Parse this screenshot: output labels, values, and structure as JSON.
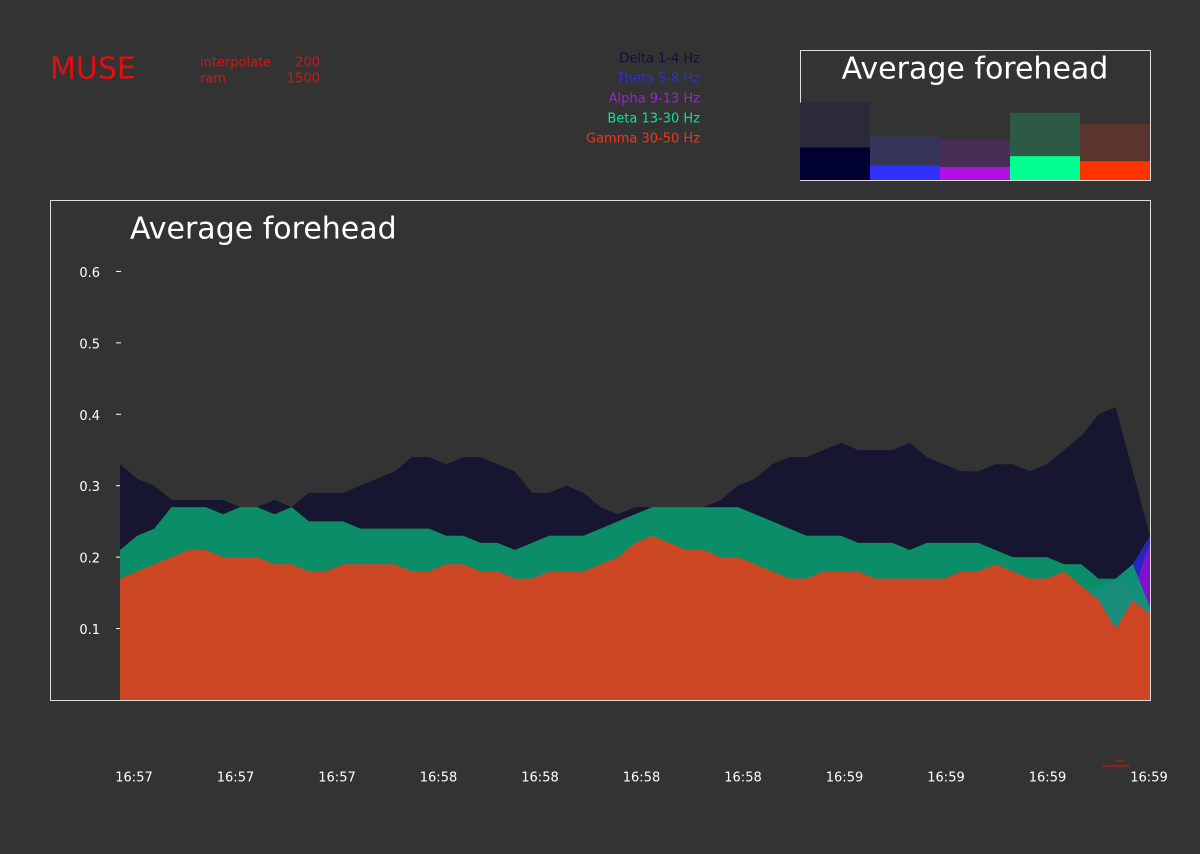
{
  "header": {
    "title": "MUSE",
    "settings": [
      {
        "label": "interpolate",
        "value": "200"
      },
      {
        "label": "ram",
        "value": "1500"
      }
    ]
  },
  "chart_data": [
    {
      "type": "bar",
      "title": "Average forehead",
      "ylim": [
        0,
        0.18
      ],
      "series": [
        {
          "colors": [
            "#2a2a3a",
            "#35355a",
            "#4a2d55",
            "#2e5a45",
            "#5a3530"
          ],
          "values": [
            0.107,
            0.06,
            0.056,
            0.093,
            0.078
          ]
        },
        {
          "colors": [
            "#000033",
            "#3030ff",
            "#b010e0",
            "#00ff90",
            "#ff3300"
          ],
          "values": [
            0.045,
            0.02,
            0.018,
            0.033,
            0.026
          ]
        }
      ]
    },
    {
      "type": "area",
      "title": "Average forehead",
      "ylim": [
        0,
        0.7
      ],
      "yticks": [
        0.1,
        0.2,
        0.3,
        0.4,
        0.5,
        0.6
      ],
      "categories": [
        "16:57",
        null,
        null,
        null,
        null,
        null,
        "16:57",
        null,
        null,
        null,
        null,
        null,
        "16:57",
        null,
        null,
        null,
        null,
        null,
        "16:58",
        null,
        null,
        null,
        null,
        null,
        "16:58",
        null,
        null,
        null,
        null,
        null,
        "16:58",
        null,
        null,
        null,
        null,
        null,
        "16:58",
        null,
        null,
        null,
        null,
        null,
        "16:59",
        null,
        null,
        null,
        null,
        null,
        "16:59",
        null,
        null,
        null,
        null,
        null,
        "16:59",
        null,
        null,
        null,
        null,
        null,
        "16:59"
      ],
      "series": [
        {
          "name": "Delta 1-4 Hz",
          "color": "#161630",
          "label_color": "#101040",
          "values": [
            0.33,
            0.31,
            0.3,
            0.28,
            0.28,
            0.28,
            0.28,
            0.27,
            0.27,
            0.28,
            0.27,
            0.29,
            0.29,
            0.29,
            0.3,
            0.31,
            0.32,
            0.34,
            0.34,
            0.33,
            0.34,
            0.34,
            0.33,
            0.32,
            0.29,
            0.29,
            0.3,
            0.29,
            0.27,
            0.26,
            0.27,
            0.27,
            0.27,
            0.27,
            0.27,
            0.28,
            0.3,
            0.31,
            0.33,
            0.34,
            0.34,
            0.35,
            0.36,
            0.35,
            0.35,
            0.35,
            0.36,
            0.34,
            0.33,
            0.32,
            0.32,
            0.33,
            0.33,
            0.32,
            0.33,
            0.35,
            0.37,
            0.4,
            0.41,
            0.32,
            0.23
          ]
        },
        {
          "name": "Theta 5-8 Hz",
          "color": "#2a2ad0",
          "label_color": "#3030d0",
          "values": [
            0.15,
            0.14,
            0.14,
            0.13,
            0.13,
            0.13,
            0.14,
            0.14,
            0.14,
            0.14,
            0.14,
            0.14,
            0.14,
            0.14,
            0.13,
            0.13,
            0.13,
            0.14,
            0.14,
            0.15,
            0.16,
            0.16,
            0.16,
            0.16,
            0.16,
            0.16,
            0.16,
            0.15,
            0.15,
            0.14,
            0.14,
            0.13,
            0.13,
            0.12,
            0.12,
            0.11,
            0.11,
            0.11,
            0.11,
            0.11,
            0.1,
            0.1,
            0.11,
            0.12,
            0.13,
            0.13,
            0.13,
            0.13,
            0.14,
            0.14,
            0.15,
            0.15,
            0.15,
            0.15,
            0.15,
            0.14,
            0.15,
            0.16,
            0.17,
            0.19,
            0.23
          ]
        },
        {
          "name": "Alpha 9-13 Hz",
          "color": "#8a10d0",
          "label_color": "#a020e0",
          "values": [
            0.14,
            0.13,
            0.13,
            0.12,
            0.12,
            0.12,
            0.13,
            0.13,
            0.13,
            0.13,
            0.13,
            0.13,
            0.13,
            0.13,
            0.12,
            0.12,
            0.12,
            0.13,
            0.13,
            0.14,
            0.15,
            0.15,
            0.15,
            0.15,
            0.15,
            0.15,
            0.15,
            0.14,
            0.14,
            0.13,
            0.13,
            0.12,
            0.12,
            0.11,
            0.11,
            0.1,
            0.1,
            0.1,
            0.1,
            0.1,
            0.09,
            0.09,
            0.1,
            0.11,
            0.12,
            0.12,
            0.12,
            0.12,
            0.13,
            0.13,
            0.14,
            0.14,
            0.14,
            0.14,
            0.14,
            0.13,
            0.14,
            0.15,
            0.17,
            0.15,
            0.22
          ]
        },
        {
          "name": "Beta 13-30 Hz",
          "color": "#0a9e70",
          "label_color": "#10e090",
          "values": [
            0.21,
            0.23,
            0.24,
            0.27,
            0.27,
            0.27,
            0.26,
            0.27,
            0.27,
            0.26,
            0.27,
            0.25,
            0.25,
            0.25,
            0.24,
            0.24,
            0.24,
            0.24,
            0.24,
            0.23,
            0.23,
            0.22,
            0.22,
            0.21,
            0.22,
            0.23,
            0.23,
            0.23,
            0.24,
            0.25,
            0.26,
            0.27,
            0.27,
            0.27,
            0.27,
            0.27,
            0.27,
            0.26,
            0.25,
            0.24,
            0.23,
            0.23,
            0.23,
            0.22,
            0.22,
            0.22,
            0.21,
            0.22,
            0.22,
            0.22,
            0.22,
            0.21,
            0.2,
            0.2,
            0.2,
            0.19,
            0.19,
            0.17,
            0.17,
            0.19,
            0.13
          ]
        },
        {
          "name": "Gamma 30-50 Hz",
          "color": "#e63c18",
          "label_color": "#ff3010",
          "values": [
            0.17,
            0.18,
            0.19,
            0.2,
            0.21,
            0.21,
            0.2,
            0.2,
            0.2,
            0.19,
            0.19,
            0.18,
            0.18,
            0.19,
            0.19,
            0.19,
            0.19,
            0.18,
            0.18,
            0.19,
            0.19,
            0.18,
            0.18,
            0.17,
            0.17,
            0.18,
            0.18,
            0.18,
            0.19,
            0.2,
            0.22,
            0.23,
            0.22,
            0.21,
            0.21,
            0.2,
            0.2,
            0.19,
            0.18,
            0.17,
            0.17,
            0.18,
            0.18,
            0.18,
            0.17,
            0.17,
            0.17,
            0.17,
            0.17,
            0.18,
            0.18,
            0.19,
            0.18,
            0.17,
            0.17,
            0.18,
            0.16,
            0.14,
            0.1,
            0.14,
            0.12
          ]
        }
      ]
    }
  ]
}
